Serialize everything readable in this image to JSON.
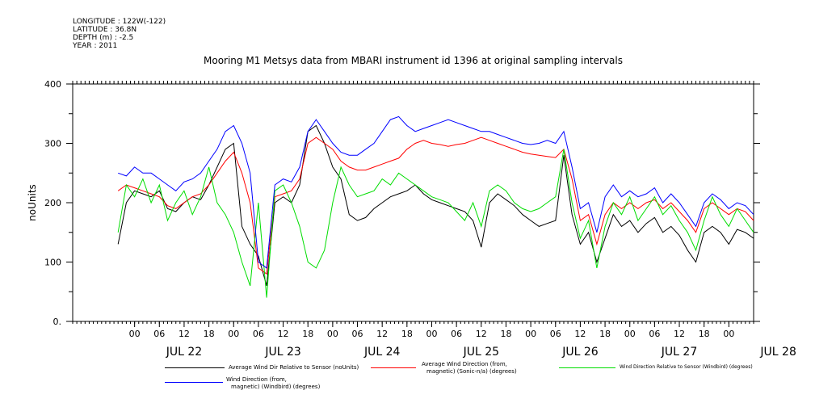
{
  "metadata": {
    "longitude": "LONGITUDE : 122W(-122)",
    "latitude": "LATITUDE : 36.8N",
    "depth": "DEPTH (m) : -2.5",
    "year": "YEAR : 2011"
  },
  "chart_data": {
    "type": "line",
    "title": "Mooring M1 Metsys data from MBARI instrument id 1396 at original sampling intervals",
    "ylabel": "noUnits",
    "xlabel": "",
    "ylim": [
      0,
      400
    ],
    "yticks": [
      0,
      100,
      200,
      300,
      400
    ],
    "ytick_labels": [
      "0.",
      "100",
      "200",
      "300",
      "400"
    ],
    "xlim_hours": [
      -15,
      150
    ],
    "hour_ticks": [
      0,
      6,
      12,
      18,
      24,
      30,
      36,
      42,
      48,
      54,
      60,
      66,
      72,
      78,
      84,
      90,
      96,
      102,
      108,
      114,
      120,
      126,
      132,
      138,
      144
    ],
    "hour_tick_labels": [
      "00",
      "06",
      "12",
      "18",
      "00",
      "06",
      "12",
      "18",
      "00",
      "06",
      "12",
      "18",
      "00",
      "06",
      "12",
      "18",
      "00",
      "06",
      "12",
      "18",
      "00",
      "06",
      "12",
      "18",
      "00"
    ],
    "day_labels": [
      {
        "label": "JUL 22",
        "hour": 12
      },
      {
        "label": "JUL 23",
        "hour": 36
      },
      {
        "label": "JUL 24",
        "hour": 60
      },
      {
        "label": "JUL 25",
        "hour": 84
      },
      {
        "label": "JUL 26",
        "hour": 108
      },
      {
        "label": "JUL 27",
        "hour": 132
      },
      {
        "label": "JUL 28",
        "hour": 156
      }
    ],
    "series": [
      {
        "name": "Average Wind Dir Relative to Sensor (noUnits)",
        "color": "#000000",
        "hours": [
          -4,
          -2,
          0,
          2,
          4,
          6,
          8,
          10,
          12,
          14,
          16,
          18,
          20,
          22,
          24,
          26,
          28,
          30,
          32,
          34,
          36,
          38,
          40,
          42,
          44,
          46,
          48,
          50,
          52,
          54,
          56,
          58,
          60,
          62,
          64,
          66,
          68,
          70,
          72,
          74,
          76,
          78,
          80,
          82,
          84,
          86,
          88,
          90,
          92,
          94,
          96,
          98,
          100,
          102,
          104,
          106,
          108,
          110,
          112,
          114,
          116,
          118,
          120,
          122,
          124,
          126,
          128,
          130,
          132,
          134,
          136,
          138,
          140,
          142,
          144,
          146,
          148,
          150
        ],
        "values": [
          130,
          200,
          220,
          215,
          210,
          220,
          190,
          185,
          200,
          210,
          205,
          230,
          260,
          290,
          300,
          160,
          130,
          110,
          60,
          200,
          210,
          200,
          230,
          320,
          330,
          300,
          260,
          240,
          180,
          170,
          175,
          190,
          200,
          210,
          215,
          220,
          230,
          215,
          205,
          200,
          195,
          190,
          185,
          170,
          125,
          200,
          215,
          205,
          195,
          180,
          170,
          160,
          165,
          170,
          280,
          180,
          130,
          150,
          100,
          140,
          180,
          160,
          170,
          150,
          165,
          175,
          150,
          160,
          145,
          120,
          100,
          150,
          160,
          150,
          130,
          155,
          150,
          140
        ]
      },
      {
        "name": "Average Wind Direction (from, magnetic) (Sonic-n/a) (degrees)",
        "color": "#ff0000",
        "hours": [
          -4,
          -2,
          0,
          2,
          4,
          6,
          8,
          10,
          12,
          14,
          16,
          18,
          20,
          22,
          24,
          26,
          28,
          30,
          32,
          34,
          36,
          38,
          40,
          42,
          44,
          46,
          48,
          50,
          52,
          54,
          56,
          58,
          60,
          62,
          64,
          66,
          68,
          70,
          72,
          74,
          76,
          78,
          80,
          82,
          84,
          86,
          88,
          90,
          92,
          94,
          96,
          98,
          100,
          102,
          104,
          106,
          108,
          110,
          112,
          114,
          116,
          118,
          120,
          122,
          124,
          126,
          128,
          130,
          132,
          134,
          136,
          138,
          140,
          142,
          144,
          146,
          148,
          150
        ],
        "values": [
          220,
          230,
          225,
          220,
          215,
          210,
          195,
          190,
          200,
          210,
          215,
          230,
          250,
          270,
          285,
          250,
          200,
          90,
          80,
          210,
          215,
          220,
          240,
          300,
          310,
          300,
          290,
          270,
          260,
          255,
          255,
          260,
          265,
          270,
          275,
          290,
          300,
          305,
          300,
          298,
          295,
          298,
          300,
          305,
          310,
          305,
          300,
          295,
          290,
          285,
          282,
          280,
          278,
          276,
          290,
          240,
          170,
          180,
          130,
          180,
          200,
          190,
          200,
          190,
          200,
          205,
          190,
          200,
          185,
          170,
          150,
          190,
          200,
          190,
          180,
          190,
          185,
          170
        ]
      },
      {
        "name": "Wind Direction Relative to Sensor (Windbird) (degrees)",
        "color": "#00dd00",
        "hours": [
          -4,
          -2,
          0,
          2,
          4,
          6,
          8,
          10,
          12,
          14,
          16,
          18,
          20,
          22,
          24,
          26,
          28,
          30,
          32,
          34,
          36,
          38,
          40,
          42,
          44,
          46,
          48,
          50,
          52,
          54,
          56,
          58,
          60,
          62,
          64,
          66,
          68,
          70,
          72,
          74,
          76,
          78,
          80,
          82,
          84,
          86,
          88,
          90,
          92,
          94,
          96,
          98,
          100,
          102,
          104,
          106,
          108,
          110,
          112,
          114,
          116,
          118,
          120,
          122,
          124,
          126,
          128,
          130,
          132,
          134,
          136,
          138,
          140,
          142,
          144,
          146,
          148,
          150
        ],
        "values": [
          150,
          230,
          210,
          240,
          200,
          230,
          170,
          200,
          220,
          180,
          210,
          260,
          200,
          180,
          150,
          100,
          60,
          200,
          40,
          220,
          230,
          200,
          160,
          100,
          90,
          120,
          200,
          260,
          230,
          210,
          215,
          220,
          240,
          230,
          250,
          240,
          230,
          220,
          210,
          205,
          200,
          185,
          170,
          200,
          160,
          220,
          230,
          220,
          200,
          190,
          185,
          190,
          200,
          210,
          290,
          200,
          140,
          170,
          90,
          160,
          200,
          180,
          210,
          170,
          190,
          210,
          180,
          195,
          170,
          150,
          120,
          170,
          210,
          180,
          160,
          190,
          170,
          150
        ]
      },
      {
        "name": "Wind Direction (from, magnetic) (Windbird) (degrees)",
        "color": "#0000ff",
        "hours": [
          -4,
          -2,
          0,
          2,
          4,
          6,
          8,
          10,
          12,
          14,
          16,
          18,
          20,
          22,
          24,
          26,
          28,
          30,
          32,
          34,
          36,
          38,
          40,
          42,
          44,
          46,
          48,
          50,
          52,
          54,
          56,
          58,
          60,
          62,
          64,
          66,
          68,
          70,
          72,
          74,
          76,
          78,
          80,
          82,
          84,
          86,
          88,
          90,
          92,
          94,
          96,
          98,
          100,
          102,
          104,
          106,
          108,
          110,
          112,
          114,
          116,
          118,
          120,
          122,
          124,
          126,
          128,
          130,
          132,
          134,
          136,
          138,
          140,
          142,
          144,
          146,
          148,
          150
        ],
        "values": [
          250,
          245,
          260,
          250,
          250,
          240,
          230,
          220,
          235,
          240,
          250,
          270,
          290,
          320,
          330,
          300,
          250,
          100,
          90,
          230,
          240,
          235,
          260,
          320,
          340,
          320,
          300,
          285,
          280,
          280,
          290,
          300,
          320,
          340,
          345,
          330,
          320,
          325,
          330,
          335,
          340,
          335,
          330,
          325,
          320,
          320,
          315,
          310,
          305,
          300,
          298,
          300,
          305,
          300,
          320,
          260,
          190,
          200,
          150,
          210,
          230,
          210,
          220,
          210,
          215,
          225,
          200,
          215,
          200,
          180,
          160,
          200,
          215,
          205,
          190,
          200,
          195,
          180
        ]
      }
    ],
    "legend_position": "bottom"
  },
  "legend": {
    "black_label": "Average Wind Dir Relative to Sensor (noUnits)",
    "red_label_1": "Average Wind Direction (from,",
    "red_label_2": "magnetic) (Sonic-n/a) (degrees)",
    "green_label": "Wind Direction Relative to Sensor (Windbird) (degrees)",
    "blue_label_1": "Wind Direction (from,",
    "blue_label_2": "magnetic) (Windbird) (degrees)"
  }
}
